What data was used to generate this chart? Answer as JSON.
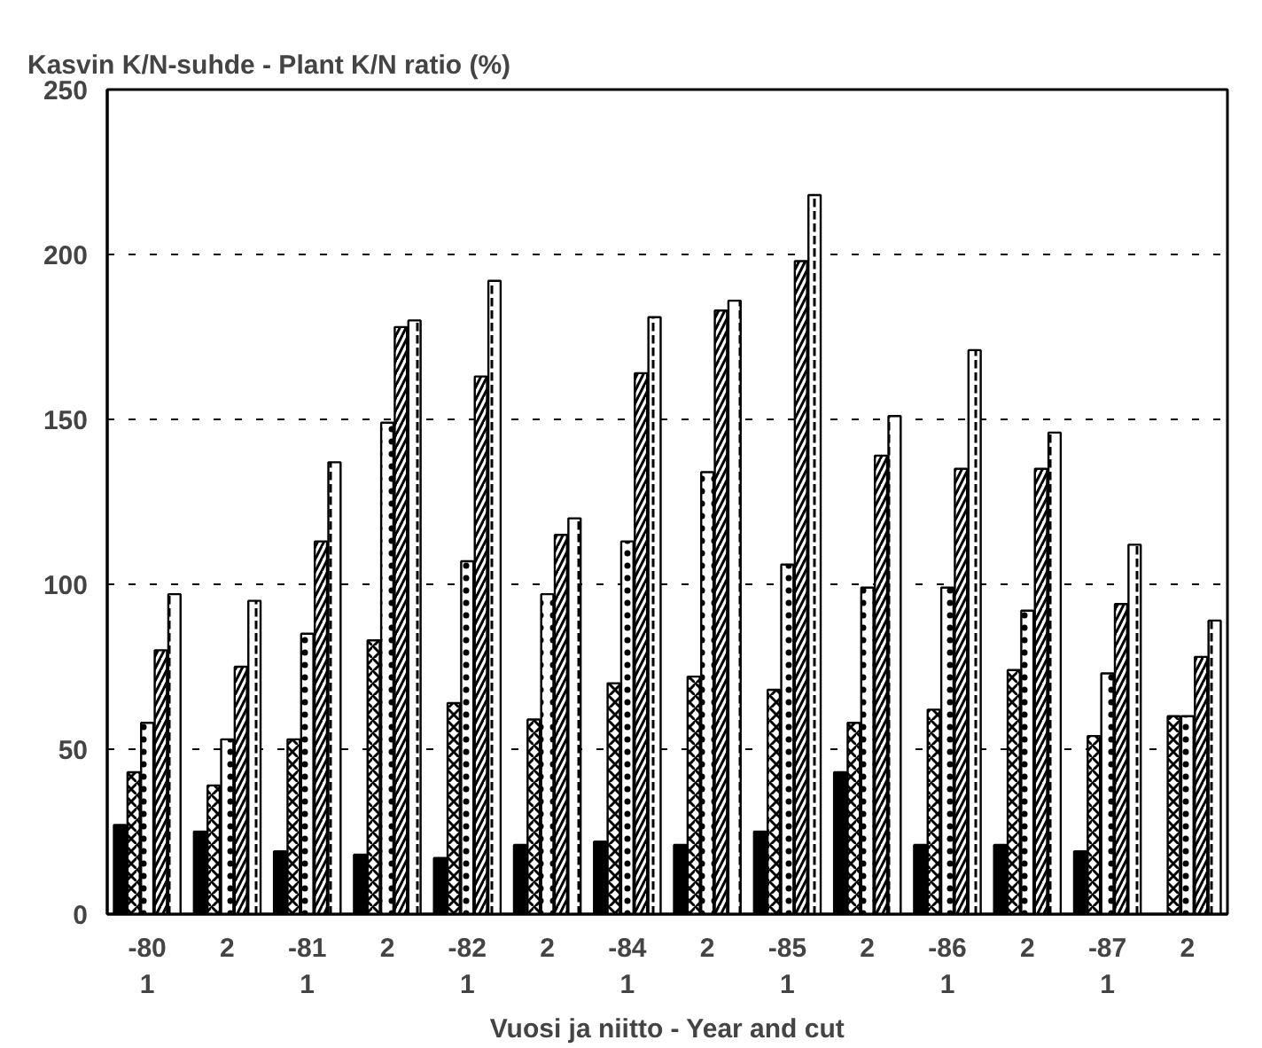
{
  "chart_data": {
    "type": "bar",
    "title": "Kasvin K/N-suhde - Plant K/N ratio (%)",
    "xlabel": "Vuosi ja niitto - Year and cut",
    "categories": [
      "-80\n1",
      "2",
      "-81\n1",
      "2",
      "-82\n1",
      "2",
      "-84\n1",
      "2",
      "-85\n1",
      "2",
      "-86\n1",
      "2",
      "-87\n1",
      "2"
    ],
    "series": [
      {
        "color": "#000000",
        "values": [
          27,
          25,
          19,
          18,
          17,
          21,
          22,
          21,
          25,
          43,
          21,
          21,
          19,
          null
        ]
      },
      {
        "color": "#ffffff",
        "values": [
          43,
          39,
          53,
          83,
          64,
          59,
          70,
          72,
          68,
          58,
          62,
          74,
          54,
          60
        ]
      },
      {
        "color": "#ffffff",
        "values": [
          58,
          53,
          85,
          149,
          107,
          97,
          113,
          134,
          106,
          99,
          99,
          92,
          73,
          60
        ]
      },
      {
        "color": "#ffffff",
        "values": [
          80,
          75,
          113,
          178,
          163,
          115,
          164,
          183,
          198,
          139,
          135,
          135,
          94,
          78
        ]
      },
      {
        "color": "#ffffff",
        "values": [
          97,
          95,
          137,
          180,
          192,
          120,
          181,
          186,
          218,
          151,
          171,
          146,
          112,
          89
        ]
      }
    ],
    "ylim": [
      0,
      250
    ],
    "yticks": [
      0,
      50,
      100,
      150,
      200,
      250
    ],
    "grid": "y"
  }
}
